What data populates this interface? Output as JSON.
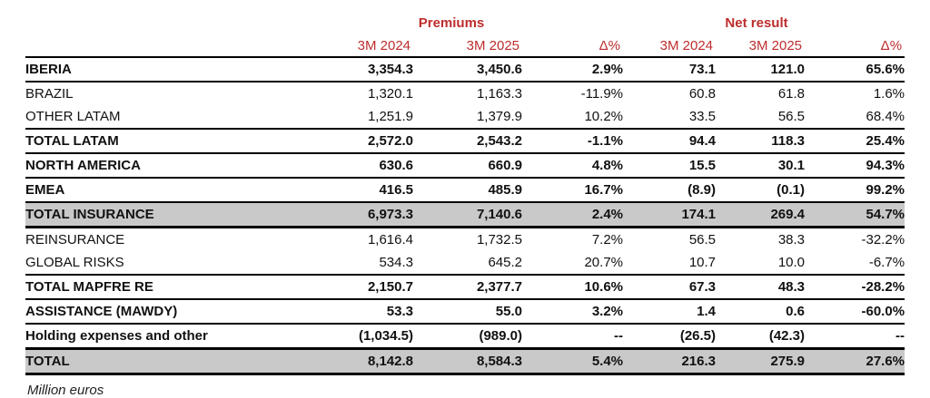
{
  "colors": {
    "accent_red": "#BE2D2D",
    "shaded_row_bg": "#C9C9C9",
    "border_black": "#000000"
  },
  "table": {
    "groups": [
      {
        "label": "Premiums"
      },
      {
        "label": "Net result"
      }
    ],
    "sub_headers": [
      "3M 2024",
      "3M 2025",
      "Δ%",
      "3M 2024",
      "3M 2025",
      "Δ%"
    ],
    "rows": [
      {
        "label": "IBERIA",
        "bold": true,
        "shaded": false,
        "border": "normal",
        "values": [
          "3,354.3",
          "3,450.6",
          "2.9%",
          "73.1",
          "121.0",
          "65.6%"
        ]
      },
      {
        "label": "BRAZIL",
        "bold": false,
        "shaded": false,
        "border": "none",
        "values": [
          "1,320.1",
          "1,163.3",
          "-11.9%",
          "60.8",
          "61.8",
          "1.6%"
        ]
      },
      {
        "label": "OTHER LATAM",
        "bold": false,
        "shaded": false,
        "border": "normal",
        "values": [
          "1,251.9",
          "1,379.9",
          "10.2%",
          "33.5",
          "56.5",
          "68.4%"
        ]
      },
      {
        "label": "TOTAL LATAM",
        "bold": true,
        "shaded": false,
        "border": "normal",
        "values": [
          "2,572.0",
          "2,543.2",
          "-1.1%",
          "94.4",
          "118.3",
          "25.4%"
        ]
      },
      {
        "label": "NORTH AMERICA",
        "bold": true,
        "shaded": false,
        "border": "normal",
        "values": [
          "630.6",
          "660.9",
          "4.8%",
          "15.5",
          "30.1",
          "94.3%"
        ]
      },
      {
        "label": "EMEA",
        "bold": true,
        "shaded": false,
        "border": "normal",
        "values": [
          "416.5",
          "485.9",
          "16.7%",
          "(8.9)",
          "(0.1)",
          "99.2%"
        ]
      },
      {
        "label": "TOTAL INSURANCE",
        "bold": true,
        "shaded": true,
        "border": "thick",
        "values": [
          "6,973.3",
          "7,140.6",
          "2.4%",
          "174.1",
          "269.4",
          "54.7%"
        ]
      },
      {
        "label": "REINSURANCE",
        "bold": false,
        "shaded": false,
        "border": "none",
        "values": [
          "1,616.4",
          "1,732.5",
          "7.2%",
          "56.5",
          "38.3",
          "-32.2%"
        ]
      },
      {
        "label": "GLOBAL RISKS",
        "bold": false,
        "shaded": false,
        "border": "normal",
        "values": [
          "534.3",
          "645.2",
          "20.7%",
          "10.7",
          "10.0",
          "-6.7%"
        ]
      },
      {
        "label": "TOTAL MAPFRE RE",
        "bold": true,
        "shaded": false,
        "border": "normal",
        "values": [
          "2,150.7",
          "2,377.7",
          "10.6%",
          "67.3",
          "48.3",
          "-28.2%"
        ]
      },
      {
        "label": "ASSISTANCE (MAWDY)",
        "bold": true,
        "shaded": false,
        "border": "normal",
        "values": [
          "53.3",
          "55.0",
          "3.2%",
          "1.4",
          "0.6",
          "-60.0%"
        ]
      },
      {
        "label": "Holding expenses and other",
        "bold": true,
        "shaded": false,
        "border": "thick",
        "values": [
          "(1,034.5)",
          "(989.0)",
          "--",
          "(26.5)",
          "(42.3)",
          "--"
        ]
      },
      {
        "label": "TOTAL",
        "bold": true,
        "shaded": true,
        "border": "thick",
        "values": [
          "8,142.8",
          "8,584.3",
          "5.4%",
          "216.3",
          "275.9",
          "27.6%"
        ]
      }
    ],
    "footnote": "Million euros"
  }
}
